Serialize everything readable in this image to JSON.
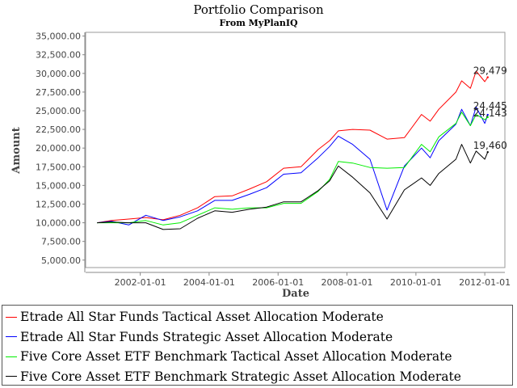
{
  "chart_data": {
    "type": "line",
    "title": "Portfolio Comparison",
    "subtitle": "From MyPlanIQ",
    "xlabel": "Date",
    "ylabel": "Amount",
    "xlim": [
      "2000-06-01",
      "2012-08-01"
    ],
    "ylim": [
      4000,
      35500
    ],
    "yticks": [
      "5,000.00",
      "7,500.00",
      "10,000.00",
      "12,500.00",
      "15,000.00",
      "17,500.00",
      "20,000.00",
      "22,500.00",
      "25,000.00",
      "27,500.00",
      "30,000.00",
      "32,500.00",
      "35,000.00"
    ],
    "xticks": [
      "2002-01-01",
      "2004-01-01",
      "2006-01-01",
      "2008-01-01",
      "2010-01-01",
      "2012-01-01"
    ],
    "grid": true,
    "legend_position": "bottom",
    "series": [
      {
        "name": "Etrade All Star Funds Tactical Asset Allocation Moderate",
        "color": "#ff0000",
        "end_label": "29,479",
        "x": [
          "2000-10-01",
          "2001-03-01",
          "2001-09-01",
          "2002-03-01",
          "2002-09-01",
          "2003-03-01",
          "2003-09-01",
          "2004-03-01",
          "2004-09-01",
          "2005-03-01",
          "2005-09-01",
          "2006-03-01",
          "2006-09-01",
          "2007-03-01",
          "2007-07-01",
          "2007-10-01",
          "2008-03-01",
          "2008-09-01",
          "2009-03-01",
          "2009-09-01",
          "2010-03-01",
          "2010-06-01",
          "2010-09-01",
          "2011-03-01",
          "2011-05-01",
          "2011-08-01",
          "2011-10-01",
          "2012-01-01",
          "2012-02-01"
        ],
        "values": [
          10000,
          10300,
          10500,
          10700,
          10400,
          11000,
          12000,
          13500,
          13600,
          14500,
          15500,
          17300,
          17500,
          19800,
          21000,
          22300,
          22500,
          22400,
          21200,
          21400,
          24500,
          23600,
          25200,
          27500,
          29000,
          28000,
          30300,
          28900,
          29479
        ]
      },
      {
        "name": "Etrade All Star Funds Strategic Asset Allocation Moderate",
        "color": "#0000ff",
        "end_label": "24,445",
        "x": [
          "2000-10-01",
          "2001-03-01",
          "2001-09-01",
          "2002-03-01",
          "2002-09-01",
          "2003-03-01",
          "2003-09-01",
          "2004-03-01",
          "2004-09-01",
          "2005-03-01",
          "2005-09-01",
          "2006-03-01",
          "2006-09-01",
          "2007-03-01",
          "2007-07-01",
          "2007-10-01",
          "2008-03-01",
          "2008-09-01",
          "2009-03-01",
          "2009-09-01",
          "2010-03-01",
          "2010-06-01",
          "2010-09-01",
          "2011-03-01",
          "2011-05-01",
          "2011-08-01",
          "2011-10-01",
          "2012-01-01",
          "2012-02-01"
        ],
        "values": [
          10000,
          10200,
          9700,
          11000,
          10300,
          10800,
          11600,
          13000,
          13000,
          13800,
          14700,
          16500,
          16700,
          18700,
          20200,
          21600,
          20500,
          18500,
          11700,
          17600,
          20000,
          18700,
          21000,
          23200,
          25200,
          23000,
          25500,
          23300,
          24445
        ]
      },
      {
        "name": "Five Core Asset ETF Benchmark Tactical Asset Allocation Moderate",
        "color": "#00ee00",
        "end_label": "24,143",
        "x": [
          "2000-10-01",
          "2001-03-01",
          "2001-09-01",
          "2002-03-01",
          "2002-09-01",
          "2003-03-01",
          "2003-09-01",
          "2004-03-01",
          "2004-09-01",
          "2005-03-01",
          "2005-09-01",
          "2006-03-01",
          "2006-09-01",
          "2007-03-01",
          "2007-07-01",
          "2007-10-01",
          "2008-03-01",
          "2008-09-01",
          "2009-03-01",
          "2009-09-01",
          "2010-03-01",
          "2010-06-01",
          "2010-09-01",
          "2011-03-01",
          "2011-05-01",
          "2011-08-01",
          "2011-10-01",
          "2012-01-01",
          "2012-02-01"
        ],
        "values": [
          10000,
          10000,
          10000,
          10300,
          9700,
          10000,
          11000,
          12000,
          11800,
          12000,
          12000,
          12600,
          12600,
          14200,
          15800,
          18200,
          18000,
          17400,
          17300,
          17400,
          20500,
          19500,
          21500,
          23300,
          24800,
          23000,
          24500,
          23800,
          24143
        ]
      },
      {
        "name": "Five Core Asset ETF Benchmark Strategic Asset Allocation Moderate",
        "color": "#000000",
        "end_label": "19,460",
        "x": [
          "2000-10-01",
          "2001-03-01",
          "2001-09-01",
          "2002-03-01",
          "2002-09-01",
          "2003-03-01",
          "2003-09-01",
          "2004-03-01",
          "2004-09-01",
          "2005-03-01",
          "2005-09-01",
          "2006-03-01",
          "2006-09-01",
          "2007-03-01",
          "2007-07-01",
          "2007-10-01",
          "2008-03-01",
          "2008-09-01",
          "2009-03-01",
          "2009-09-01",
          "2010-03-01",
          "2010-06-01",
          "2010-09-01",
          "2011-03-01",
          "2011-05-01",
          "2011-08-01",
          "2011-10-01",
          "2012-01-01",
          "2012-02-01"
        ],
        "values": [
          10000,
          10100,
          10000,
          10000,
          9100,
          9200,
          10600,
          11600,
          11400,
          11800,
          12100,
          12800,
          12800,
          14300,
          15600,
          17600,
          16100,
          14000,
          10500,
          14400,
          16000,
          15000,
          16600,
          18500,
          20500,
          18000,
          19600,
          18500,
          19460
        ]
      }
    ]
  }
}
